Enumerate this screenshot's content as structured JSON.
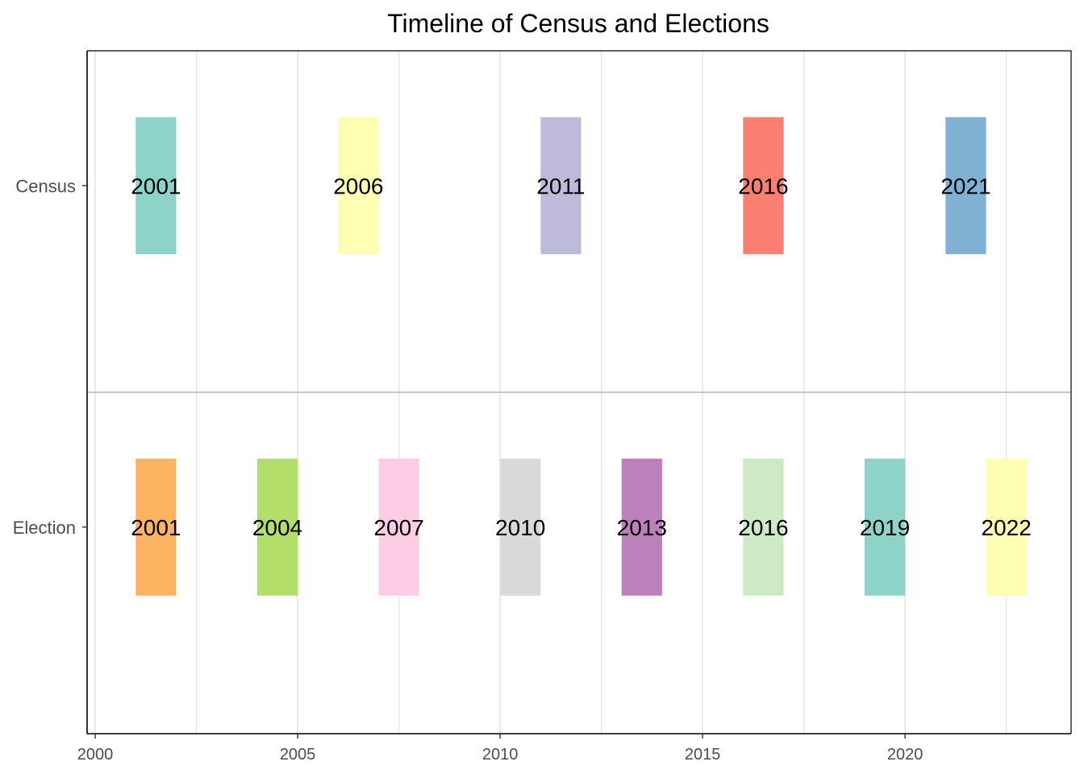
{
  "chart_data": {
    "type": "bar",
    "title": "Timeline of Census and Elections",
    "xlabel": "",
    "ylabel": "",
    "xlim": [
      1999.8,
      2024.1
    ],
    "x_ticks": [
      2000,
      2005,
      2010,
      2015,
      2020
    ],
    "x_tick_labels": [
      "2000",
      "2005",
      "2010",
      "2015",
      "2020"
    ],
    "categories": [
      "Census",
      "Election"
    ],
    "grid": true,
    "legend": "none",
    "series": [
      {
        "category": "Census",
        "events": [
          {
            "year": 2001,
            "label": "2001",
            "color": "#8DD3C7"
          },
          {
            "year": 2006,
            "label": "2006",
            "color": "#FFFFB3"
          },
          {
            "year": 2011,
            "label": "2011",
            "color": "#BEBADA"
          },
          {
            "year": 2016,
            "label": "2016",
            "color": "#FB8072"
          },
          {
            "year": 2021,
            "label": "2021",
            "color": "#80B1D3"
          }
        ]
      },
      {
        "category": "Election",
        "events": [
          {
            "year": 2001,
            "label": "2001",
            "color": "#FDB462"
          },
          {
            "year": 2004,
            "label": "2004",
            "color": "#B3DE69"
          },
          {
            "year": 2007,
            "label": "2007",
            "color": "#FCCDE5"
          },
          {
            "year": 2010,
            "label": "2010",
            "color": "#D9D9D9"
          },
          {
            "year": 2013,
            "label": "2013",
            "color": "#BC80BD"
          },
          {
            "year": 2016,
            "label": "2016",
            "color": "#CCEBC5"
          },
          {
            "year": 2019,
            "label": "2019",
            "color": "#8DD3C7"
          },
          {
            "year": 2022,
            "label": "2022",
            "color": "#FFFFB3"
          }
        ]
      }
    ]
  }
}
